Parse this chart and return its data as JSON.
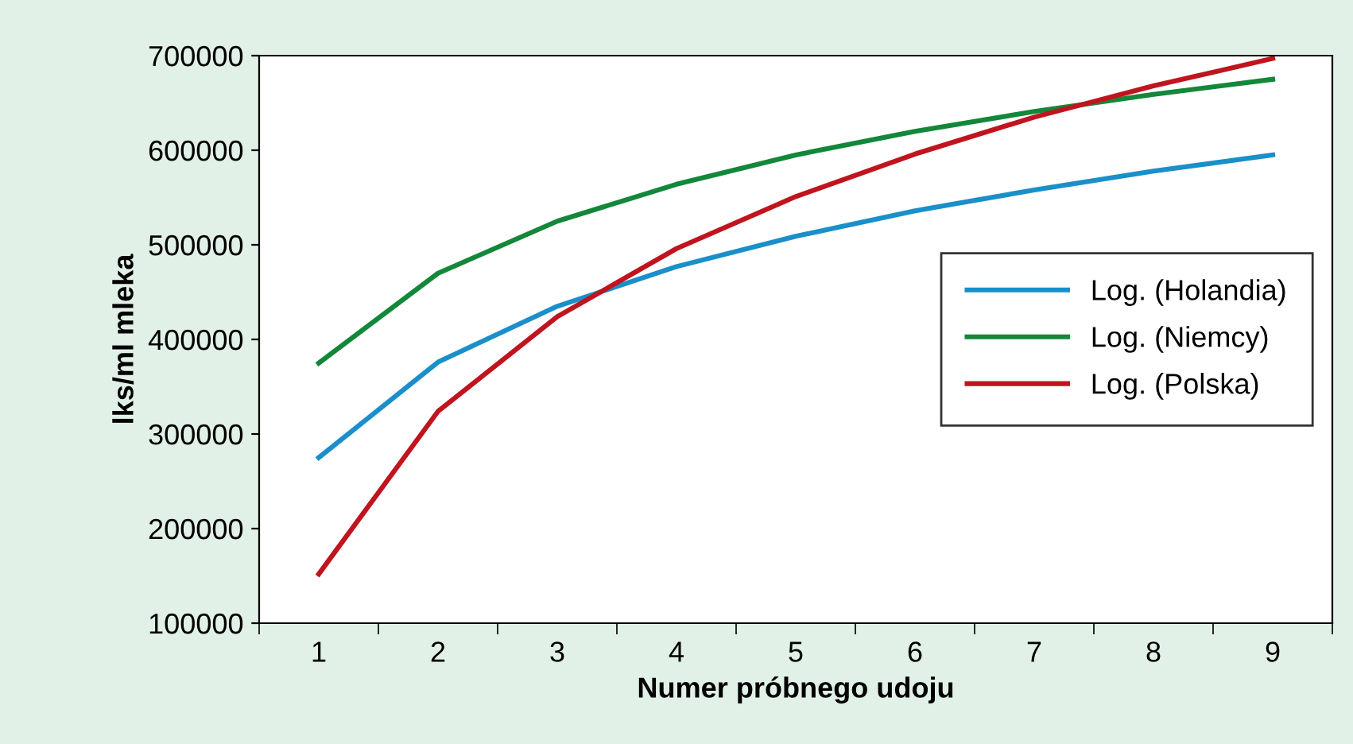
{
  "chart_data": {
    "type": "line",
    "xlabel": "Numer próbnego udoju",
    "ylabel": "lks/ml mleka",
    "categories": [
      "1",
      "2",
      "3",
      "4",
      "5",
      "6",
      "7",
      "8",
      "9"
    ],
    "series": [
      {
        "name": "Log. (Holandia)",
        "color": "#1a8fc9",
        "values": [
          275000,
          376000,
          435000,
          477000,
          509000,
          536000,
          558000,
          578000,
          595000
        ]
      },
      {
        "name": "Log. (Niemcy)",
        "color": "#13873a",
        "values": [
          375000,
          470000,
          525000,
          564000,
          595000,
          620000,
          641000,
          659000,
          675000
        ]
      },
      {
        "name": "Log. (Polska)",
        "color": "#c0141e",
        "values": [
          152000,
          324000,
          424000,
          496000,
          551000,
          596000,
          635000,
          668000,
          697000
        ]
      }
    ],
    "ylim": [
      100000,
      700000
    ],
    "yticks": [
      100000,
      200000,
      300000,
      400000,
      500000,
      600000,
      700000
    ],
    "grid": false,
    "legend": "center right",
    "marker": "none",
    "line_style": "solid"
  }
}
